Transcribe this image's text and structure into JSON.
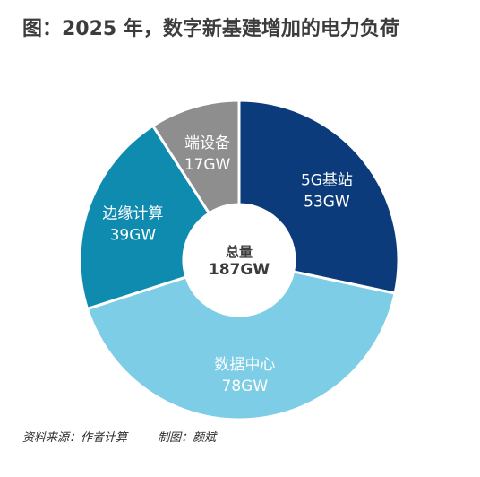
{
  "title": "图：2025 年，数字新基建增加的电力负荷",
  "chart_data": {
    "type": "pie",
    "donut": true,
    "center_label": {
      "line1": "总量",
      "line2": "187GW"
    },
    "total": 187,
    "unit": "GW",
    "slices": [
      {
        "name": "5G基站",
        "value": 53,
        "value_label": "53GW",
        "color": "#0b3b7b"
      },
      {
        "name": "数据中心",
        "value": 78,
        "value_label": "78GW",
        "color": "#7ecde6"
      },
      {
        "name": "边缘计算",
        "value": 39,
        "value_label": "39GW",
        "color": "#0f8bb0"
      },
      {
        "name": "端设备",
        "value": 17,
        "value_label": "17GW",
        "color": "#8e8e8e"
      }
    ]
  },
  "footer": {
    "source": "资料来源：作者计算",
    "author": "制图：颜斌"
  }
}
